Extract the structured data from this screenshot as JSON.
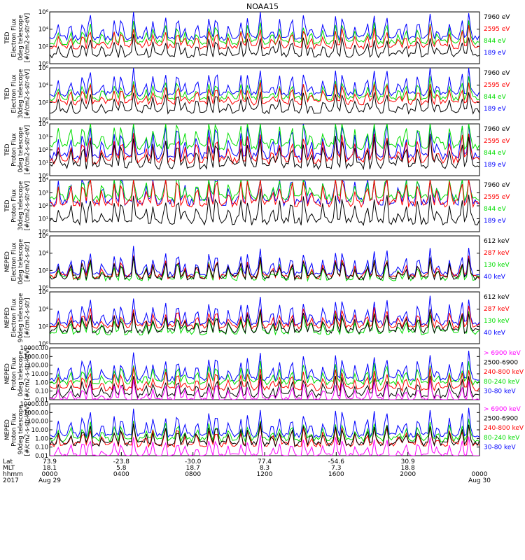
{
  "chart_data": {
    "type": "line",
    "title": "NOAA15",
    "panels": [
      {
        "ylabel": [
          "TED",
          "Electron Flux",
          "0deg telescope",
          "[#/cm2-s-str-eV]"
        ],
        "scale": "log",
        "ylim": [
          1,
          1000000
        ],
        "tick_labels": [
          "10⁰",
          "10²",
          "10⁴",
          "10⁶"
        ],
        "series": [
          {
            "name": "7960 eV",
            "color": "#000000",
            "level": 1
          },
          {
            "name": "2595 eV",
            "color": "#ff0000",
            "level": 2
          },
          {
            "name": "844 eV",
            "color": "#00dd00",
            "level": 2.5
          },
          {
            "name": "189 eV",
            "color": "#0000ff",
            "level": 3
          }
        ]
      },
      {
        "ylabel": [
          "TED",
          "Electron Flux",
          "30deg telescope",
          "[#/cm2-s-str-eV]"
        ],
        "scale": "log",
        "ylim": [
          1,
          1000000
        ],
        "tick_labels": [
          "10⁰",
          "10²",
          "10⁴",
          "10⁶"
        ],
        "series": [
          {
            "name": "7960 eV",
            "color": "#000000",
            "level": 1
          },
          {
            "name": "2595 eV",
            "color": "#ff0000",
            "level": 2
          },
          {
            "name": "844 eV",
            "color": "#00dd00",
            "level": 2.5
          },
          {
            "name": "189 eV",
            "color": "#0000ff",
            "level": 3
          }
        ]
      },
      {
        "ylabel": [
          "TED",
          "Proton Flux",
          "0deg telescope",
          "[#/cm2-s-str-eV]"
        ],
        "scale": "log",
        "ylim": [
          1,
          10000
        ],
        "tick_labels": [
          "10⁰",
          "10¹",
          "10²",
          "10³",
          "10⁴"
        ],
        "series": [
          {
            "name": "7960 eV",
            "color": "#000000",
            "level": 0.8
          },
          {
            "name": "2595 eV",
            "color": "#ff0000",
            "level": 1.2
          },
          {
            "name": "844 eV",
            "color": "#00dd00",
            "level": 2.3
          },
          {
            "name": "189 eV",
            "color": "#0000ff",
            "level": 1.5
          }
        ]
      },
      {
        "ylabel": [
          "TED",
          "Proton Flux",
          "30deg telescope",
          "[#/cm2-s-str-eV]"
        ],
        "scale": "log",
        "ylim": [
          1,
          10000
        ],
        "tick_labels": [
          "10⁰",
          "10¹",
          "10²",
          "10³",
          "10⁴"
        ],
        "series": [
          {
            "name": "7960 eV",
            "color": "#000000",
            "level": 0.8
          },
          {
            "name": "2595 eV",
            "color": "#ff0000",
            "level": 2.2
          },
          {
            "name": "844 eV",
            "color": "#00dd00",
            "level": 2.6
          },
          {
            "name": "189 eV",
            "color": "#0000ff",
            "level": 2.3
          }
        ]
      },
      {
        "ylabel": [
          "MEPED",
          "Electron Flux",
          "0deg telescope",
          "[#/cm2-s-str]"
        ],
        "scale": "log",
        "ylim": [
          1,
          1000000
        ],
        "tick_labels": [
          "10⁰",
          "10²",
          "10⁴",
          "10⁶"
        ],
        "series": [
          {
            "name": "612 keV",
            "color": "#000000",
            "level": 1.2
          },
          {
            "name": "287 keV",
            "color": "#ff0000",
            "level": 1.3
          },
          {
            "name": "130 keV",
            "color": "#00dd00",
            "level": 1.1
          },
          {
            "name": "40 keV",
            "color": "#0000ff",
            "level": 1.6
          }
        ]
      },
      {
        "ylabel": [
          "MEPED",
          "Electron Flux",
          "90deg telescope",
          "[#/cm2-s-str]"
        ],
        "scale": "log",
        "ylim": [
          1,
          1000000
        ],
        "tick_labels": [
          "10⁰",
          "10²",
          "10⁴",
          "10⁶"
        ],
        "series": [
          {
            "name": "612 keV",
            "color": "#000000",
            "level": 1.5
          },
          {
            "name": "287 keV",
            "color": "#ff0000",
            "level": 2
          },
          {
            "name": "130 keV",
            "color": "#00dd00",
            "level": 1.3
          },
          {
            "name": "40 keV",
            "color": "#0000ff",
            "level": 2.4
          }
        ]
      },
      {
        "ylabel": [
          "MEPED",
          "Proton Flux",
          "0deg telescope",
          "[#/cm2-s-str-keV]"
        ],
        "scale": "log",
        "ylim": [
          0.01,
          10000
        ],
        "tick_labels": [
          "0.01",
          "0.10",
          "1.00",
          "10.00",
          "100.00",
          "1000.00",
          "10000.00"
        ],
        "series": [
          {
            "name": "> 6900 keV",
            "color": "#ff00ff",
            "level": -2
          },
          {
            "name": "2500-6900",
            "color": "#000000",
            "level": -1.5
          },
          {
            "name": "240-800 keV",
            "color": "#ff0000",
            "level": -0.7
          },
          {
            "name": "80-240 keV",
            "color": "#00dd00",
            "level": 0
          },
          {
            "name": "30-80 keV",
            "color": "#0000ff",
            "level": 0.4
          }
        ]
      },
      {
        "ylabel": [
          "MEPED",
          "Proton Flux",
          "90deg telescope",
          "[#/cm2-s-str-keV]"
        ],
        "scale": "log",
        "ylim": [
          0.01,
          10000
        ],
        "tick_labels": [
          "0.01",
          "0.10",
          "1.00",
          "10.00",
          "100.00",
          "1000.00",
          "10000.00"
        ],
        "series": [
          {
            "name": "> 6900 keV",
            "color": "#ff00ff",
            "level": -2
          },
          {
            "name": "2500-6900",
            "color": "#000000",
            "level": -0.6
          },
          {
            "name": "240-800 keV",
            "color": "#ff0000",
            "level": -0.7
          },
          {
            "name": "80-240 keV",
            "color": "#00dd00",
            "level": -0.1
          },
          {
            "name": "30-80 keV",
            "color": "#0000ff",
            "level": 0.4
          }
        ]
      }
    ],
    "x_axis": {
      "row_labels": [
        "Lat",
        "MLT",
        "hhmm",
        "2017"
      ],
      "ticks": [
        {
          "hours": 0,
          "lat": "73.9",
          "mlt": "18.1",
          "hhmm": "0000",
          "date": "Aug 29"
        },
        {
          "hours": 4,
          "lat": "-23.8",
          "mlt": "5.8",
          "hhmm": "0400",
          "date": ""
        },
        {
          "hours": 8,
          "lat": "-30.0",
          "mlt": "18.7",
          "hhmm": "0800",
          "date": ""
        },
        {
          "hours": 12,
          "lat": "77.4",
          "mlt": "8.3",
          "hhmm": "1200",
          "date": ""
        },
        {
          "hours": 16,
          "lat": "-54.6",
          "mlt": "7.3",
          "hhmm": "1600",
          "date": ""
        },
        {
          "hours": 20,
          "lat": "30.9",
          "mlt": "18.8",
          "hhmm": "2000",
          "date": ""
        },
        {
          "hours": 24,
          "lat": "",
          "mlt": "",
          "hhmm": "0000",
          "date": "Aug 30"
        }
      ],
      "xlim": [
        0,
        24
      ]
    }
  }
}
